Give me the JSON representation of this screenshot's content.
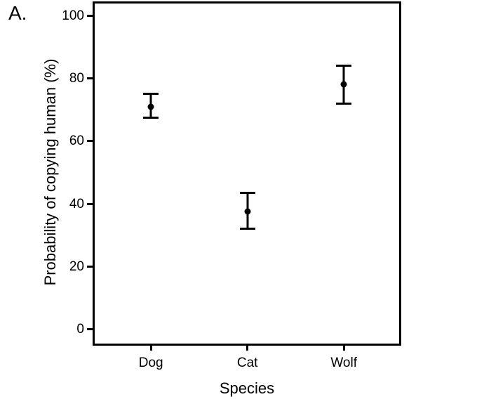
{
  "panel_label": "A.",
  "chart_data": {
    "type": "scatter",
    "subtype": "point-estimates-with-error-bars",
    "title": "",
    "xlabel": "Species",
    "ylabel": "Probability of copying human (%)",
    "categories": [
      "Dog",
      "Cat",
      "Wolf"
    ],
    "series": [
      {
        "name": "Probability of copying human",
        "values": [
          71,
          37.5,
          78
        ],
        "error_low": [
          67.5,
          32,
          72
        ],
        "error_high": [
          75,
          43.5,
          84
        ]
      }
    ],
    "yticks": [
      0,
      20,
      40,
      60,
      80,
      100
    ],
    "ylim": [
      -5.2,
      104.5
    ],
    "grid": false,
    "legend": "none",
    "marker": "filled-circle",
    "line_color": "#000000",
    "background_color": "#ffffff"
  }
}
